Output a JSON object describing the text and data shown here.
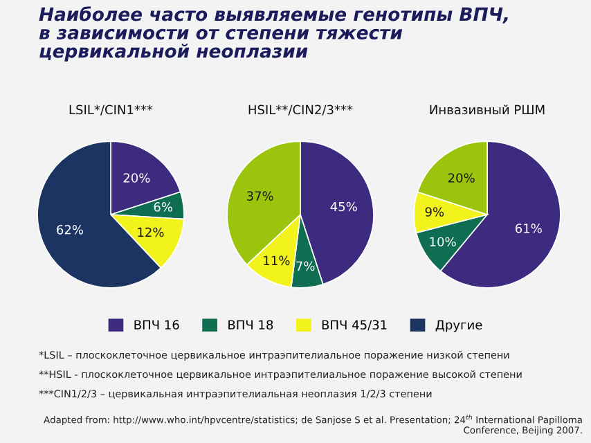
{
  "chart_data": [
    {
      "type": "pie",
      "subtitle": "LSIL*/CIN1***",
      "categories": [
        "ВПЧ 16",
        "ВПЧ 18",
        "ВПЧ 45/31",
        "Другие"
      ],
      "values": [
        20,
        6,
        12,
        62
      ],
      "value_labels": [
        "20%",
        "6%",
        "12%",
        "62%"
      ],
      "colors": [
        "#3d2b80",
        "#0f6e52",
        "#f2f21c",
        "#1b3462"
      ],
      "legend": "bottom",
      "annotations": [
        "Наиболее часто выявляемые генотипы ВПЧ,\nв зависимости от степени тяжести\nцервикальной неоплазии",
        "*LSIL – плоскоклеточное цервикальное интраэпителиальное поражение низкой степени",
        "**HSIL - плоскоклеточное цервикальное интраэпителиальное поражение высокой степени",
        "***CIN1/2/3 – цервикальная интраэпителиальная неоплазия 1/2/3 степени",
        "Adapted from: http://www.who.int/hpvcentre/statistics; de Sanjose S et al. Presentation; 24$^{th}$ International Papilloma\nConference, Beijing 2007."
      ]
    },
    {
      "type": "pie",
      "subtitle": "HSIL**/CIN2/3***",
      "categories": [
        null,
        null,
        null,
        null
      ],
      "values": [
        45,
        7,
        11,
        37
      ],
      "value_labels": [
        "45%",
        "7%",
        "11%",
        "37%"
      ],
      "colors": [
        "#3d2b80",
        "#0f6e52",
        "#f2f21c",
        "#9cc40c"
      ]
    },
    {
      "type": "pie",
      "subtitle": "Инвазивный РШМ",
      "categories": [
        null,
        null,
        null,
        null
      ],
      "values": [
        61,
        10,
        9,
        20
      ],
      "value_labels": [
        "61%",
        "10%",
        "9%",
        "20%"
      ],
      "colors": [
        "#3d2b80",
        "#0f6e52",
        "#f2f21c",
        "#9cc40c"
      ]
    }
  ]
}
